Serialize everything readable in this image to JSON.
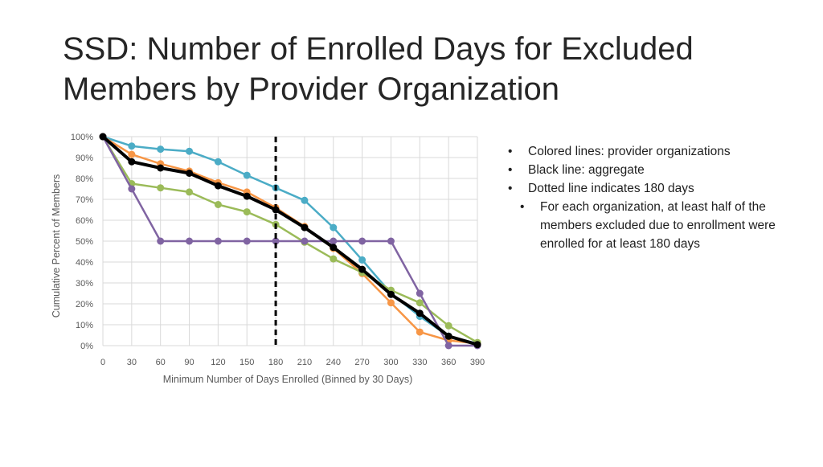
{
  "slide": {
    "title_line1": "SSD: Number of Enrolled Days for Excluded",
    "title_line2": "Members by Provider Organization"
  },
  "bullets": {
    "items": [
      "Colored lines: provider organizations",
      "Black line: aggregate",
      "Dotted line indicates 180 days"
    ],
    "sub_item": "For each organization, at least half of the members excluded due to enrollment were enrolled for at least 180 days"
  },
  "chart_data": {
    "type": "line",
    "title": "",
    "xlabel": "Minimum Number of Days Enrolled (Binned by 30 Days)",
    "ylabel": "Cumulative Percent of Members",
    "x": [
      0,
      30,
      60,
      90,
      120,
      150,
      180,
      210,
      240,
      270,
      300,
      330,
      360,
      390
    ],
    "xlim": [
      0,
      390
    ],
    "ylim": [
      0,
      100
    ],
    "y_ticks": [
      "0%",
      "10%",
      "20%",
      "30%",
      "40%",
      "50%",
      "60%",
      "70%",
      "80%",
      "90%",
      "100%"
    ],
    "grid": true,
    "reference_line": {
      "x": 180,
      "style": "dashed",
      "color": "#000000"
    },
    "series": [
      {
        "color": "#4BACC6",
        "values": [
          100,
          95.5,
          94,
          93,
          88,
          81.5,
          75.5,
          69.5,
          56.5,
          41,
          25,
          14,
          4.5,
          1
        ]
      },
      {
        "color": "#F79646",
        "values": [
          100,
          91.5,
          87,
          83.5,
          78,
          73.5,
          66,
          57,
          46.5,
          34.5,
          20.5,
          6.5,
          2.5,
          1
        ]
      },
      {
        "color": "#9BBB59",
        "values": [
          100,
          77.5,
          75.5,
          73.5,
          67.5,
          64,
          58,
          49.5,
          41.5,
          35,
          26.5,
          20.5,
          9.5,
          1.5
        ]
      },
      {
        "color": "#8064A2",
        "values": [
          100,
          75,
          50,
          50,
          50,
          50,
          50,
          50,
          50,
          50,
          50,
          25,
          0,
          0
        ]
      },
      {
        "color": "#000000",
        "aggregate": true,
        "values": [
          100,
          88,
          85,
          82.5,
          76.5,
          71.5,
          65,
          56.5,
          47,
          36.5,
          24.5,
          15.5,
          4.5,
          0.5
        ]
      }
    ]
  }
}
